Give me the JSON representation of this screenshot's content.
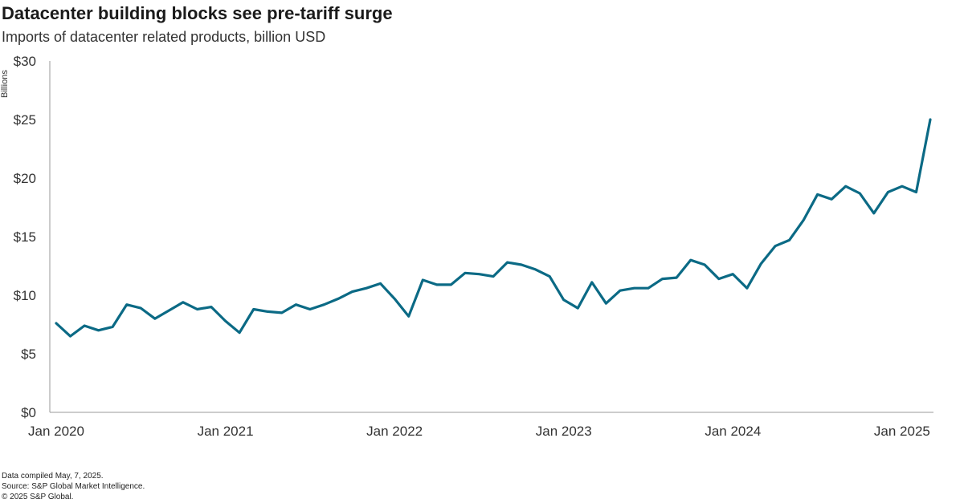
{
  "chart_data": {
    "type": "line",
    "title": "Datacenter building blocks see pre-tariff surge",
    "subtitle": "Imports of datacenter related products, billion USD",
    "ylabel": "Billions",
    "ylim": [
      0,
      30
    ],
    "yticks": [
      {
        "value": 0,
        "label": "$0"
      },
      {
        "value": 5,
        "label": "$5"
      },
      {
        "value": 10,
        "label": "$10"
      },
      {
        "value": 15,
        "label": "$15"
      },
      {
        "value": 20,
        "label": "$20"
      },
      {
        "value": 25,
        "label": "$25"
      },
      {
        "value": 30,
        "label": "$30"
      }
    ],
    "xticks": [
      "Jan 2020",
      "Jan 2021",
      "Jan 2022",
      "Jan 2023",
      "Jan 2024",
      "Jan 2025"
    ],
    "grid": false,
    "legend": "none",
    "color": "#0b6a85",
    "series": [
      {
        "x": [
          "2020-01",
          "2020-02",
          "2020-03",
          "2020-04",
          "2020-05",
          "2020-06",
          "2020-07",
          "2020-08",
          "2020-09",
          "2020-10",
          "2020-11",
          "2020-12",
          "2021-01",
          "2021-02",
          "2021-03",
          "2021-04",
          "2021-05",
          "2021-06",
          "2021-07",
          "2021-08",
          "2021-09",
          "2021-10",
          "2021-11",
          "2021-12",
          "2022-01",
          "2022-02",
          "2022-03",
          "2022-04",
          "2022-05",
          "2022-06",
          "2022-07",
          "2022-08",
          "2022-09",
          "2022-10",
          "2022-11",
          "2022-12",
          "2023-01",
          "2023-02",
          "2023-03",
          "2023-04",
          "2023-05",
          "2023-06",
          "2023-07",
          "2023-08",
          "2023-09",
          "2023-10",
          "2023-11",
          "2023-12",
          "2024-01",
          "2024-02",
          "2024-03",
          "2024-04",
          "2024-05",
          "2024-06",
          "2024-07",
          "2024-08",
          "2024-09",
          "2024-10",
          "2024-11",
          "2024-12",
          "2025-01",
          "2025-02",
          "2025-03"
        ],
        "values": [
          7.6,
          6.5,
          7.4,
          7.0,
          7.3,
          9.2,
          8.9,
          8.0,
          8.7,
          9.4,
          8.8,
          9.0,
          7.8,
          6.8,
          8.8,
          8.6,
          8.5,
          9.2,
          8.8,
          9.2,
          9.7,
          10.3,
          10.6,
          11.0,
          9.7,
          8.2,
          11.3,
          10.9,
          10.9,
          11.9,
          11.8,
          11.6,
          12.8,
          12.6,
          12.2,
          11.6,
          9.6,
          8.9,
          11.1,
          9.3,
          10.4,
          10.6,
          10.6,
          11.4,
          11.5,
          13.0,
          12.6,
          11.4,
          11.8,
          10.6,
          12.7,
          14.2,
          14.7,
          16.4,
          18.6,
          18.2,
          19.3,
          18.7,
          17.0,
          18.8,
          19.3,
          18.8,
          25.0
        ]
      }
    ]
  },
  "footer": {
    "line1": "Data compiled May, 7, 2025.",
    "line2": "Source: S&P Global Market Intelligence.",
    "line3": "© 2025 S&P Global."
  }
}
